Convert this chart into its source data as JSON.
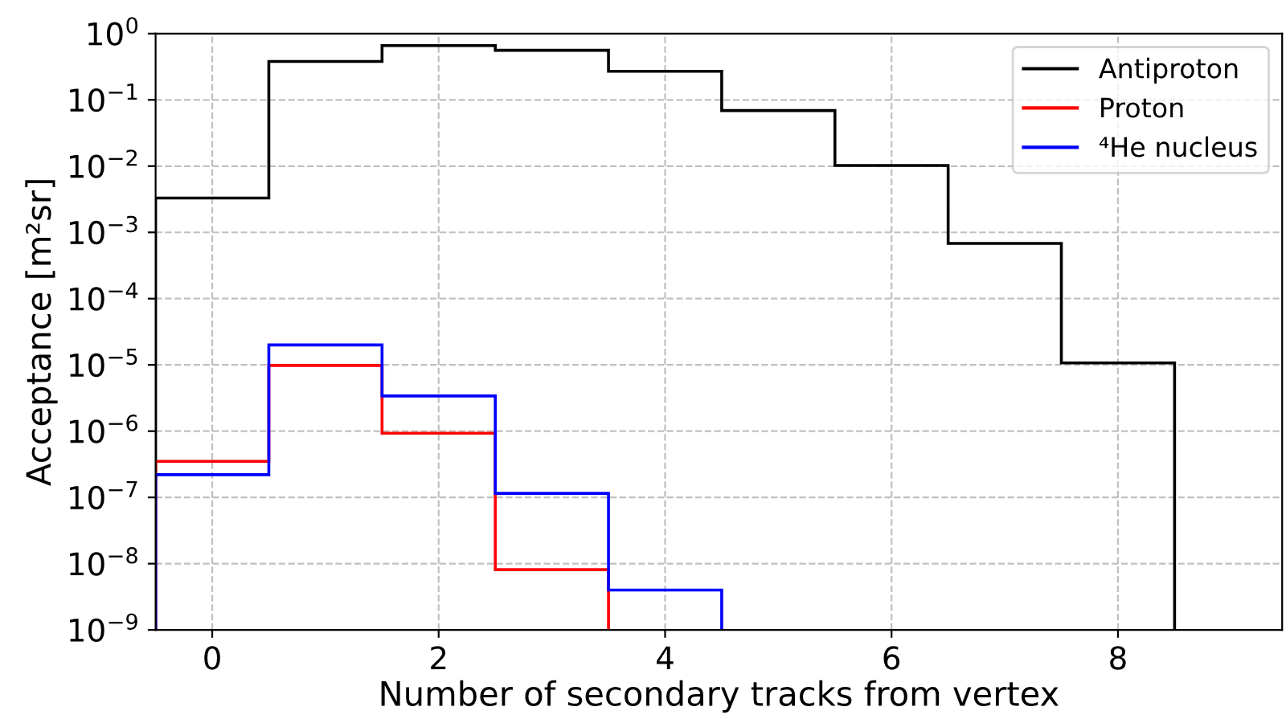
{
  "chart_data": {
    "type": "histogram",
    "xlabel": "Number of secondary tracks from vertex",
    "ylabel": "Acceptance [m²sr]",
    "log": "y",
    "grid": true,
    "legend": "top right",
    "line_style": "dashed",
    "xlim": [
      -0.5,
      9.45
    ],
    "xticks": [
      0,
      2,
      4,
      6,
      8
    ],
    "ylim": [
      1e-09,
      1
    ],
    "yticks": [
      {
        "value": 1e-09,
        "label": "10$^{−9}$"
      },
      {
        "value": 1e-08,
        "label": "10$^{−8}$"
      },
      {
        "value": 1e-07,
        "label": "10$^{−7}$"
      },
      {
        "value": 1e-06,
        "label": "10$^{−6}$"
      },
      {
        "value": 1e-05,
        "label": "10$^{−5}$"
      },
      {
        "value": 0.0001,
        "label": "10$^{−4}$"
      },
      {
        "value": 0.001,
        "label": "10$^{−3}$"
      },
      {
        "value": 0.01,
        "label": "10$^{−2}$"
      },
      {
        "value": 0.1,
        "label": "10$^{−1}$"
      },
      {
        "value": 1,
        "label": "10$^{0}$"
      }
    ],
    "bins": [
      -0.5,
      0.5,
      1.5,
      2.5,
      3.5,
      4.5,
      5.5,
      6.5,
      7.5,
      8.5
    ],
    "series": [
      {
        "name": "Antiproton",
        "color": "#000000",
        "values": [
          0.0033,
          0.38,
          0.66,
          0.56,
          0.27,
          0.069,
          0.0102,
          0.00068,
          1.07e-05
        ]
      },
      {
        "name": "Proton",
        "color": "#ff0000",
        "bins": [
          -0.5,
          0.5,
          1.5,
          2.5,
          3.5
        ],
        "values": [
          3.5e-07,
          9.8e-06,
          9.3e-07,
          8.1e-09
        ]
      },
      {
        "name": "⁴He nucleus",
        "color": "#0000ff",
        "bins": [
          -0.5,
          0.5,
          1.5,
          2.5,
          3.5,
          4.5
        ],
        "values": [
          2.2e-07,
          2e-05,
          3.4e-06,
          1.15e-07,
          4e-09
        ]
      }
    ]
  }
}
